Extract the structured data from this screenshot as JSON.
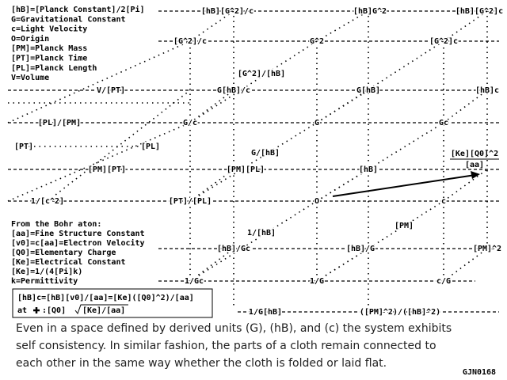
{
  "legend": [
    "[hB]=[Planck Constant]/2[Pi]",
    "G=Gravitational Constant",
    "c=Light Velocity",
    "O=Origin",
    "[PM]=Planck Mass",
    "[PT]=Planck Time",
    "[PL]=Planck Length",
    "V=Volume"
  ],
  "nodes": [
    {
      "label": "[hB][G^2]/c"
    },
    {
      "label": "[hB]G^2"
    },
    {
      "label": "[hB][G^2]c"
    },
    {
      "label": "[G^2]/c"
    },
    {
      "label": "G^2"
    },
    {
      "label": "[G^2]c"
    },
    {
      "label": "[G^2]/[hB]"
    },
    {
      "label": "V/[PT]"
    },
    {
      "label": "G[hB]/c"
    },
    {
      "label": "G[hB]"
    },
    {
      "label": "[hB]c"
    },
    {
      "label": "[PL]/[PM]"
    },
    {
      "label": "G/c"
    },
    {
      "label": "G"
    },
    {
      "label": "Gc"
    },
    {
      "label": "[PT]"
    },
    {
      "label": "[PL]"
    },
    {
      "label": "G/[hB]"
    },
    {
      "label": "[PM][PT]"
    },
    {
      "label": "[PM][PL]"
    },
    {
      "label": "[hB]"
    },
    {
      "label": "1/[c^2]"
    },
    {
      "label": "[PT]/[PL]"
    },
    {
      "label": "O"
    },
    {
      "label": "c"
    },
    {
      "label": "[PM]"
    },
    {
      "label": "1/[hB]"
    },
    {
      "label": "[hB]/Gc"
    },
    {
      "label": "[hB]/G"
    },
    {
      "label": "[PM]^2"
    },
    {
      "label": "1/Gc"
    },
    {
      "label": "1/G"
    },
    {
      "label": "c/G"
    },
    {
      "label": "1/G[hB]"
    },
    {
      "label": "([PM]^2)/([hB]^2)"
    }
  ],
  "fraction": {
    "numerator": "[Ke][Q0]^2",
    "denominator": "[aa]"
  },
  "bohr": {
    "heading": "From the Bohr aton:",
    "lines": [
      "[aa]=Fine Structure Constant",
      "[v0]=c[aa]=Electron Velocity",
      "[Q0]=Elementary Charge",
      "[Ke]=Electrical Constant",
      "[Ke]=1/(4[Pi]k)",
      "k=Permittivity"
    ]
  },
  "formula": {
    "line1": "[hB]c=[hB][v0]/[aa]=[Ke]([Q0]^2)/[aa]",
    "prefix": "at",
    "charge": ":[Q0]",
    "root": "[Ke]/[aa]"
  },
  "caption": [
    "Even in a space defined by derived units (G), (hB), and (c) the system exhibits",
    "self consistency.  In similar fashion, the parts of a cloth remain connected to",
    "each other in the same way whether the cloth is folded or laid flat."
  ],
  "signature": "GJN0168"
}
